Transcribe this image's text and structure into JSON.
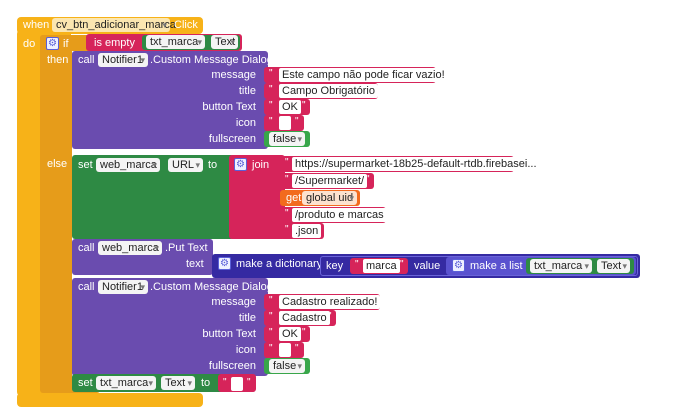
{
  "event": {
    "when_label": "when",
    "do_label": "do",
    "component": "cv_btn_adicionar_marca",
    "event_name": "Click"
  },
  "if_block": {
    "if_label": "if",
    "then_label": "then",
    "else_label": "else",
    "condition": {
      "label": "is empty",
      "component": "txt_marca",
      "property": "Text"
    }
  },
  "notifier_1": {
    "call_label": "call",
    "component": "Notifier1",
    "method": ".Custom Message Dialog",
    "param_labels": [
      "message",
      "title",
      "button Text",
      "icon",
      "fullscreen"
    ],
    "message": "Este campo não pode ficar vazio!",
    "title": "Campo Obrigatório",
    "button_text": "OK",
    "icon": "",
    "fullscreen": "false"
  },
  "set_url": {
    "set_label": "set",
    "component": "web_marca",
    "property": "URL",
    "to_label": "to",
    "join_label": "join",
    "parts": [
      "https://supermarket-18b25-default-rtdb.firebasei...",
      "/Supermarket/",
      "/produto e marcas",
      ".json"
    ],
    "get_label": "get",
    "global_var": "global uid"
  },
  "put_text": {
    "call_label": "call",
    "component": "web_marca",
    "method": ".Put Text",
    "text_label": "text",
    "dict_label": "make a dictionary",
    "key_label": "key",
    "key_value": "marca",
    "value_label": "value",
    "list_label": "make a list",
    "list_component": "txt_marca",
    "list_property": "Text"
  },
  "notifier_2": {
    "call_label": "call",
    "component": "Notifier1",
    "method": ".Custom Message Dialog",
    "param_labels": [
      "message",
      "title",
      "button Text",
      "icon",
      "fullscreen"
    ],
    "message": "Cadastro realizado!",
    "title": "Cadastro",
    "button_text": "OK",
    "icon": "",
    "fullscreen": "false"
  },
  "set_clear": {
    "set_label": "set",
    "component": "txt_marca",
    "property": "Text",
    "to_label": "to",
    "value": ""
  }
}
